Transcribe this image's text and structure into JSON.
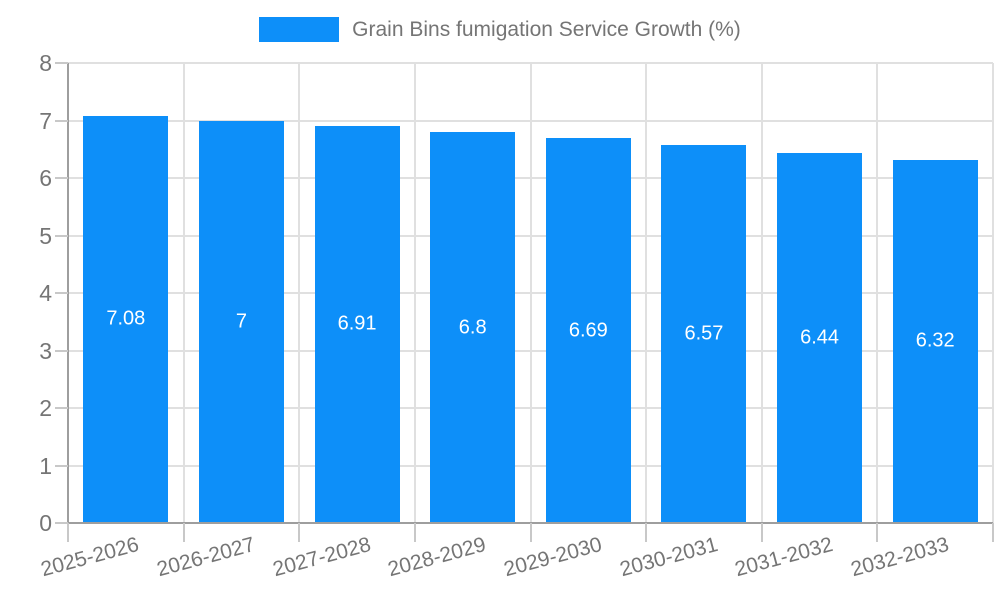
{
  "chart_data": {
    "type": "bar",
    "title": "Grain Bins fumigation Service Growth (%)",
    "categories": [
      "2025-2026",
      "2026-2027",
      "2027-2028",
      "2028-2029",
      "2029-2030",
      "2030-2031",
      "2031-2032",
      "2032-2033"
    ],
    "values": [
      7.08,
      7,
      6.91,
      6.8,
      6.69,
      6.57,
      6.44,
      6.32
    ],
    "bar_labels": [
      "7.08",
      "7",
      "6.91",
      "6.8",
      "6.69",
      "6.57",
      "6.44",
      "6.32"
    ],
    "ytick_labels": [
      "0",
      "1",
      "2",
      "3",
      "4",
      "5",
      "6",
      "7",
      "8"
    ],
    "ylim": [
      0,
      8
    ],
    "xlabel": "",
    "ylabel": "",
    "grid": true,
    "legend_position": "top-center",
    "colors": {
      "bar": "#0D8FF9",
      "bar_label": "#FFFFFF",
      "text": "#757575",
      "grid": "#E0E0E0",
      "axis": "#9E9E9E",
      "tick": "#C8C8C8"
    }
  }
}
